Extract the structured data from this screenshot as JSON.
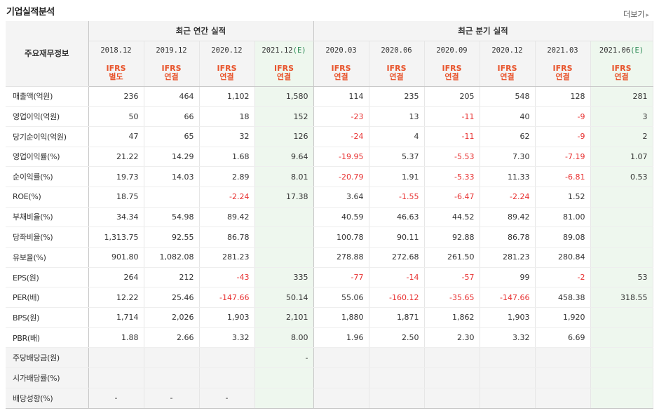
{
  "panel": {
    "title": "기업실적분석",
    "more": "더보기",
    "more_arrow": "▸"
  },
  "header": {
    "label": "주요재무정보",
    "annual_group": "최근 연간 실적",
    "quarter_group": "최근 분기 실적",
    "periods": [
      "2018.12",
      "2019.12",
      "2020.12",
      "2021.12",
      "2020.03",
      "2020.06",
      "2020.09",
      "2020.12",
      "2021.03",
      "2021.06"
    ],
    "estimate_mark": "(E)",
    "types": [
      [
        "IFRS",
        "별도"
      ],
      [
        "IFRS",
        "연결"
      ],
      [
        "IFRS",
        "연결"
      ],
      [
        "IFRS",
        "연결"
      ],
      [
        "IFRS",
        "연결"
      ],
      [
        "IFRS",
        "연결"
      ],
      [
        "IFRS",
        "연결"
      ],
      [
        "IFRS",
        "연결"
      ],
      [
        "IFRS",
        "연결"
      ],
      [
        "IFRS",
        "연결"
      ]
    ]
  },
  "rows": [
    {
      "label": "매출액(억원)",
      "values": [
        "236",
        "464",
        "1,102",
        "1,580",
        "114",
        "235",
        "205",
        "548",
        "128",
        "281"
      ]
    },
    {
      "label": "영업이익(억원)",
      "values": [
        "50",
        "66",
        "18",
        "152",
        "-23",
        "13",
        "-11",
        "40",
        "-9",
        "3"
      ]
    },
    {
      "label": "당기순이익(억원)",
      "values": [
        "47",
        "65",
        "32",
        "126",
        "-24",
        "4",
        "-11",
        "62",
        "-9",
        "2"
      ]
    },
    {
      "label": "영업이익률(%)",
      "values": [
        "21.22",
        "14.29",
        "1.68",
        "9.64",
        "-19.95",
        "5.37",
        "-5.53",
        "7.30",
        "-7.19",
        "1.07"
      ]
    },
    {
      "label": "순이익률(%)",
      "values": [
        "19.73",
        "14.03",
        "2.89",
        "8.01",
        "-20.79",
        "1.91",
        "-5.33",
        "11.33",
        "-6.81",
        "0.53"
      ]
    },
    {
      "label": "ROE(%)",
      "values": [
        "18.75",
        "",
        "-2.24",
        "17.38",
        "3.64",
        "-1.55",
        "-6.47",
        "-2.24",
        "1.52",
        ""
      ]
    },
    {
      "label": "부채비율(%)",
      "values": [
        "34.34",
        "54.98",
        "89.42",
        "",
        "40.59",
        "46.63",
        "44.52",
        "89.42",
        "81.00",
        ""
      ]
    },
    {
      "label": "당좌비율(%)",
      "values": [
        "1,313.75",
        "92.55",
        "86.78",
        "",
        "100.78",
        "90.11",
        "92.88",
        "86.78",
        "89.08",
        ""
      ]
    },
    {
      "label": "유보율(%)",
      "values": [
        "901.80",
        "1,082.08",
        "281.23",
        "",
        "278.88",
        "272.68",
        "261.50",
        "281.23",
        "280.84",
        ""
      ]
    },
    {
      "label": "EPS(원)",
      "values": [
        "264",
        "212",
        "-43",
        "335",
        "-77",
        "-14",
        "-57",
        "99",
        "-2",
        "53"
      ]
    },
    {
      "label": "PER(배)",
      "values": [
        "12.22",
        "25.46",
        "-147.66",
        "50.14",
        "55.06",
        "-160.12",
        "-35.65",
        "-147.66",
        "458.38",
        "318.55"
      ]
    },
    {
      "label": "BPS(원)",
      "values": [
        "1,714",
        "2,026",
        "1,903",
        "2,101",
        "1,880",
        "1,871",
        "1,862",
        "1,903",
        "1,920",
        ""
      ]
    },
    {
      "label": "PBR(배)",
      "values": [
        "1.88",
        "2.66",
        "3.32",
        "8.00",
        "1.96",
        "2.50",
        "2.30",
        "3.32",
        "6.69",
        ""
      ]
    },
    {
      "label": "주당배당금(원)",
      "values": [
        "",
        "",
        "",
        "-",
        "",
        "",
        "",
        "",
        "",
        ""
      ]
    },
    {
      "label": "시가배당률(%)",
      "values": [
        "",
        "",
        "",
        "",
        "",
        "",
        "",
        "",
        "",
        ""
      ]
    },
    {
      "label": "배당성향(%)",
      "values": [
        "-",
        "-",
        "-",
        "",
        "",
        "",
        "",
        "",
        "",
        ""
      ]
    }
  ],
  "colors": {
    "negative": "#e83030",
    "ifrs": "#e8542c",
    "estimate_bg": "#eef7ee",
    "estimate_mark": "#2e8b57"
  }
}
